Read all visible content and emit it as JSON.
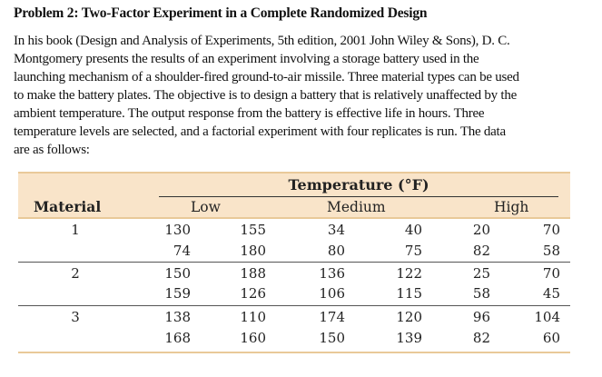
{
  "title": "Problem 2: Two-Factor Experiment in a Complete Randomized Design",
  "paragraph_lines": [
    "In his book (Design and Analysis of Experiments, 5th edition, 2001 John Wiley & Sons), D. C.",
    "Montgomery presents the results of an experiment involving a storage battery used in the",
    "launching mechanism of a shoulder-fired ground-to-air missile. Three material types can be used",
    "to make the battery plates. The objective is to design a battery that is relatively unaffected by the",
    "ambient temperature. The output response from the battery is effective life in hours. Three",
    "temperature levels are selected, and a factorial experiment with four replicates is run. The data",
    "are as follows:"
  ],
  "table": {
    "group_header": "Temperature (°F)",
    "row_header": "Material",
    "levels": [
      "Low",
      "Medium",
      "High"
    ],
    "header_color": "#f9e4c9",
    "rule_color": "#e9c999",
    "materials": [
      {
        "label": "1",
        "rows": [
          [
            "130",
            "155",
            "34",
            "40",
            "20",
            "70"
          ],
          [
            "74",
            "180",
            "80",
            "75",
            "82",
            "58"
          ]
        ]
      },
      {
        "label": "2",
        "rows": [
          [
            "150",
            "188",
            "136",
            "122",
            "25",
            "70"
          ],
          [
            "159",
            "126",
            "106",
            "115",
            "58",
            "45"
          ]
        ]
      },
      {
        "label": "3",
        "rows": [
          [
            "138",
            "110",
            "174",
            "120",
            "96",
            "104"
          ],
          [
            "168",
            "160",
            "150",
            "139",
            "82",
            "60"
          ]
        ]
      }
    ]
  }
}
